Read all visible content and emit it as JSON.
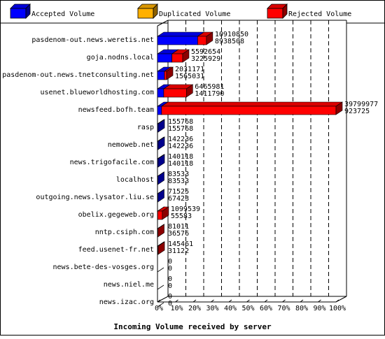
{
  "chart_data": {
    "type": "bar",
    "orientation": "horizontal",
    "stacked": true,
    "xlabel": "Incoming Volume received by server",
    "xlim": [
      0,
      100
    ],
    "x_unit": "%",
    "x_ticks": [
      "0%",
      "10%",
      "20%",
      "30%",
      "40%",
      "50%",
      "60%",
      "70%",
      "80%",
      "90%",
      "100%"
    ],
    "grid": "vertical dashed",
    "legend_position": "top",
    "series": [
      {
        "name": "Accepted Volume",
        "color": "#0000ff"
      },
      {
        "name": "Duplicated Volume",
        "color": "#ffb000"
      },
      {
        "name": "Rejected Volume",
        "color": "#ff0000"
      }
    ],
    "categories": [
      "pasdenom-out.news.weretis.net",
      "goja.nodns.local",
      "pasdenom-out.news.tnetconsulting.net",
      "usenet.blueworldhosting.com",
      "newsfeed.bofh.team",
      "rasp",
      "nemoweb.net",
      "news.trigofacile.com",
      "localhost",
      "outgoing.news.lysator.liu.se",
      "obelix.gegeweb.org",
      "nntp.csiph.com",
      "feed.usenet-fr.net",
      "news.bete-des-vosges.org",
      "news.niel.me",
      "news.izac.org"
    ],
    "total_labels": [
      "10910850",
      "5592654",
      "2031171",
      "6465981",
      "39799977",
      "155768",
      "142236",
      "140118",
      "83533",
      "71525",
      "1099539",
      "81011",
      "145461",
      "0",
      "0",
      "0"
    ],
    "accepted_labels": [
      "8938508",
      "3225929",
      "1565031",
      "1411790",
      "923725",
      "155768",
      "142236",
      "140118",
      "83533",
      "67423",
      "55583",
      "36576",
      "31122",
      "0",
      "0",
      "0"
    ],
    "accepted_pct": [
      22.5,
      8.1,
      3.9,
      3.5,
      2.3,
      0.4,
      0.4,
      0.4,
      0.2,
      0.2,
      0.1,
      0.1,
      0.1,
      0,
      0,
      0
    ],
    "duplicated_pct": [
      0,
      0,
      0,
      0,
      0,
      0,
      0,
      0,
      0,
      0,
      0,
      0,
      0,
      0,
      0,
      0
    ],
    "rejected_pct": [
      4.9,
      6.0,
      1.2,
      12.7,
      97.7,
      0,
      0,
      0,
      0,
      0.0,
      2.6,
      0.1,
      0.3,
      0,
      0,
      0
    ]
  }
}
